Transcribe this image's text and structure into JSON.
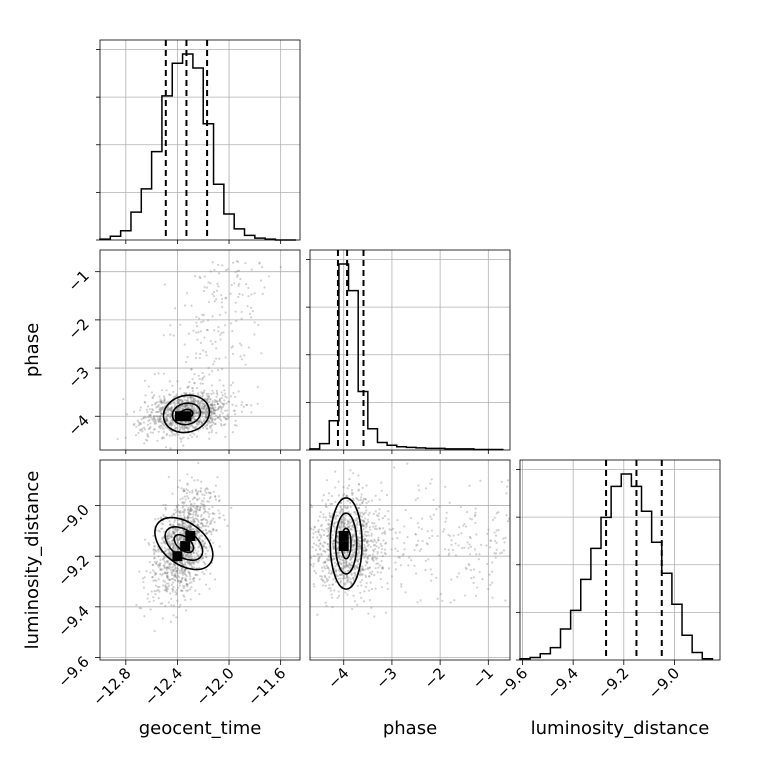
{
  "chart_data": {
    "type": "corner",
    "parameters": [
      "geocent_time",
      "phase",
      "luminosity_distance"
    ],
    "axis_labels": {
      "x": [
        "geocent_time",
        "phase",
        "luminosity_distance"
      ],
      "y": [
        "",
        "phase",
        "luminosity_distance"
      ]
    },
    "ranges": {
      "geocent_time": [
        -13.0,
        -11.45
      ],
      "phase": [
        -4.7,
        -0.55
      ],
      "luminosity_distance": [
        -9.61,
        -8.82
      ]
    },
    "ticks": {
      "geocent_time": {
        "values": [
          -12.8,
          -12.4,
          -12.0,
          -11.6
        ],
        "labels": [
          "−12.8",
          "−12.4",
          "−12.0",
          "−11.6"
        ]
      },
      "phase": {
        "values": [
          -4,
          -3,
          -2,
          -1
        ],
        "labels": [
          "−4",
          "−3",
          "−2",
          "−1"
        ]
      },
      "luminosity_distance": {
        "values": [
          -9.6,
          -9.4,
          -9.2,
          -9.0
        ],
        "labels": [
          "−9.6",
          "−9.4",
          "−9.2",
          "−9.0"
        ]
      }
    },
    "quantiles": {
      "geocent_time": [
        -12.49,
        -12.33,
        -12.17
      ],
      "phase": [
        -4.12,
        -3.93,
        -3.59
      ],
      "luminosity_distance": [
        -9.27,
        -9.15,
        -9.05
      ]
    },
    "histograms": {
      "geocent_time": {
        "edges": [
          -13.0,
          -12.92,
          -12.84,
          -12.76,
          -12.68,
          -12.6,
          -12.52,
          -12.44,
          -12.36,
          -12.28,
          -12.2,
          -12.12,
          -12.04,
          -11.96,
          -11.88,
          -11.8,
          -11.72,
          -11.64,
          -11.56,
          -11.48
        ],
        "counts": [
          1,
          4,
          10,
          30,
          55,
          95,
          155,
          190,
          200,
          185,
          125,
          60,
          28,
          12,
          5,
          2,
          1,
          0,
          0
        ]
      },
      "phase": {
        "edges": [
          -4.7,
          -4.5,
          -4.3,
          -4.1,
          -3.9,
          -3.7,
          -3.5,
          -3.3,
          -3.1,
          -2.9,
          -2.7,
          -2.5,
          -2.3,
          -2.1,
          -1.9,
          -1.7,
          -1.5,
          -1.3,
          -1.1,
          -0.9,
          -0.7
        ],
        "counts": [
          2,
          12,
          55,
          350,
          300,
          110,
          40,
          14,
          9,
          6,
          5,
          4,
          3,
          3,
          2,
          2,
          2,
          1,
          1,
          1
        ]
      },
      "luminosity_distance": {
        "edges": [
          -9.61,
          -9.57,
          -9.53,
          -9.49,
          -9.45,
          -9.41,
          -9.37,
          -9.33,
          -9.29,
          -9.25,
          -9.21,
          -9.17,
          -9.13,
          -9.09,
          -9.05,
          -9.01,
          -8.97,
          -8.93,
          -8.89,
          -8.85
        ],
        "counts": [
          1,
          2,
          5,
          10,
          25,
          40,
          65,
          90,
          115,
          140,
          150,
          140,
          120,
          95,
          70,
          45,
          20,
          6,
          1
        ]
      }
    },
    "pairs": [
      {
        "x": "geocent_time",
        "y": "phase",
        "center": [
          -12.33,
          -3.95
        ],
        "correlation": 0.5,
        "contours": [
          {
            "sx": 0.05,
            "sy": 0.09,
            "rot_deg": 10
          },
          {
            "sx": 0.11,
            "sy": 0.22,
            "rot_deg": 12
          },
          {
            "sx": 0.18,
            "sy": 0.38,
            "rot_deg": 14
          }
        ],
        "density_peak": [
          [
            -12.38,
            -4.0
          ],
          [
            -12.33,
            -4.0
          ]
        ]
      },
      {
        "x": "geocent_time",
        "y": "luminosity_distance",
        "center": [
          -12.35,
          -9.15
        ],
        "correlation": 0.75,
        "contours": [
          {
            "sx": 0.05,
            "sy": 0.045,
            "rot_deg": 50
          },
          {
            "sx": 0.1,
            "sy": 0.085,
            "rot_deg": 52
          },
          {
            "sx": 0.16,
            "sy": 0.13,
            "rot_deg": 52
          }
        ],
        "density_peak": [
          [
            -12.4,
            -9.2
          ],
          [
            -12.34,
            -9.16
          ],
          [
            -12.3,
            -9.12
          ]
        ]
      },
      {
        "x": "phase",
        "y": "luminosity_distance",
        "center": [
          -3.95,
          -9.15
        ],
        "correlation": 0.0,
        "contours": [
          {
            "sx": 0.1,
            "sy": 0.06,
            "rot_deg": 0
          },
          {
            "sx": 0.22,
            "sy": 0.12,
            "rot_deg": 0
          },
          {
            "sx": 0.33,
            "sy": 0.18,
            "rot_deg": 0
          }
        ],
        "density_peak": [
          [
            -4.0,
            -9.16
          ],
          [
            -4.0,
            -9.12
          ]
        ]
      }
    ]
  }
}
